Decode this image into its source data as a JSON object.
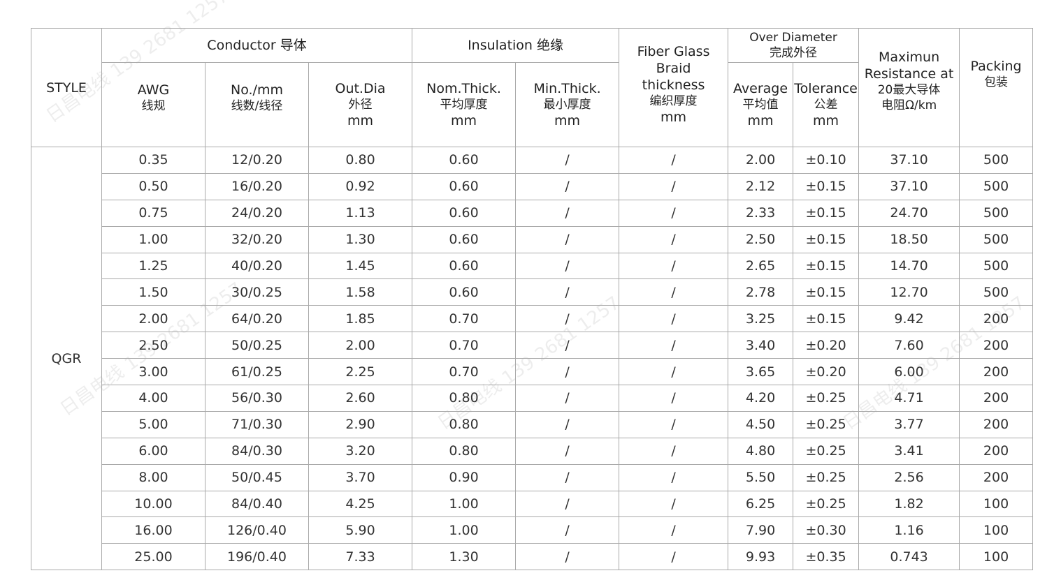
{
  "header": {
    "style": "STYLE",
    "conductor": "Conductor 导体",
    "insulation": "Insulation 绝缘",
    "fiber_glass": [
      "Fiber Glass",
      "Braid",
      "thickness",
      "编织厚度",
      "mm"
    ],
    "over_diameter": [
      "Over Diameter",
      "完成外径"
    ],
    "max_resistance": [
      "Maximun",
      "Resistance at",
      "20最大导体",
      "电阻Ω/km"
    ],
    "packing": [
      "Packing",
      "包装"
    ],
    "awg": [
      "AWG",
      "线规"
    ],
    "no_mm": [
      "No./mm",
      "线数/线径"
    ],
    "out_dia": [
      "Out.Dia",
      "外径",
      "mm"
    ],
    "nom_thick": [
      "Nom.Thick.",
      "平均厚度",
      "mm"
    ],
    "min_thick": [
      "Min.Thick.",
      "最小厚度",
      "mm"
    ],
    "average": [
      "Average",
      "平均值",
      "mm"
    ],
    "tolerance": [
      "Tolerance",
      "公差",
      "mm"
    ]
  },
  "style_value": "QGR",
  "rows": [
    [
      "0.35",
      "12/0.20",
      "0.80",
      "0.60",
      "/",
      "/",
      "2.00",
      "±0.10",
      "37.10",
      "500"
    ],
    [
      "0.50",
      "16/0.20",
      "0.92",
      "0.60",
      "/",
      "/",
      "2.12",
      "±0.15",
      "37.10",
      "500"
    ],
    [
      "0.75",
      "24/0.20",
      "1.13",
      "0.60",
      "/",
      "/",
      "2.33",
      "±0.15",
      "24.70",
      "500"
    ],
    [
      "1.00",
      "32/0.20",
      "1.30",
      "0.60",
      "/",
      "/",
      "2.50",
      "±0.15",
      "18.50",
      "500"
    ],
    [
      "1.25",
      "40/0.20",
      "1.45",
      "0.60",
      "/",
      "/",
      "2.65",
      "±0.15",
      "14.70",
      "500"
    ],
    [
      "1.50",
      "30/0.25",
      "1.58",
      "0.60",
      "/",
      "/",
      "2.78",
      "±0.15",
      "12.70",
      "500"
    ],
    [
      "2.00",
      "64/0.20",
      "1.85",
      "0.70",
      "/",
      "/",
      "3.25",
      "±0.15",
      "9.42",
      "200"
    ],
    [
      "2.50",
      "50/0.25",
      "2.00",
      "0.70",
      "/",
      "/",
      "3.40",
      "±0.20",
      "7.60",
      "200"
    ],
    [
      "3.00",
      "61/0.25",
      "2.25",
      "0.70",
      "/",
      "/",
      "3.65",
      "±0.20",
      "6.00",
      "200"
    ],
    [
      "4.00",
      "56/0.30",
      "2.60",
      "0.80",
      "/",
      "/",
      "4.20",
      "±0.25",
      "4.71",
      "200"
    ],
    [
      "5.00",
      "71/0.30",
      "2.90",
      "0.80",
      "/",
      "/",
      "4.50",
      "±0.25",
      "3.77",
      "200"
    ],
    [
      "6.00",
      "84/0.30",
      "3.20",
      "0.80",
      "/",
      "/",
      "4.80",
      "±0.25",
      "3.41",
      "200"
    ],
    [
      "8.00",
      "50/0.45",
      "3.70",
      "0.90",
      "/",
      "/",
      "5.50",
      "±0.25",
      "2.56",
      "200"
    ],
    [
      "10.00",
      "84/0.40",
      "4.25",
      "1.00",
      "/",
      "/",
      "6.25",
      "±0.25",
      "1.82",
      "100"
    ],
    [
      "16.00",
      "126/0.40",
      "5.90",
      "1.00",
      "/",
      "/",
      "7.90",
      "±0.30",
      "1.16",
      "100"
    ],
    [
      "25.00",
      "196/0.40",
      "7.33",
      "1.30",
      "/",
      "/",
      "9.93",
      "±0.35",
      "0.743",
      "100"
    ]
  ],
  "watermark": "日昌电线 139 2681 1257"
}
